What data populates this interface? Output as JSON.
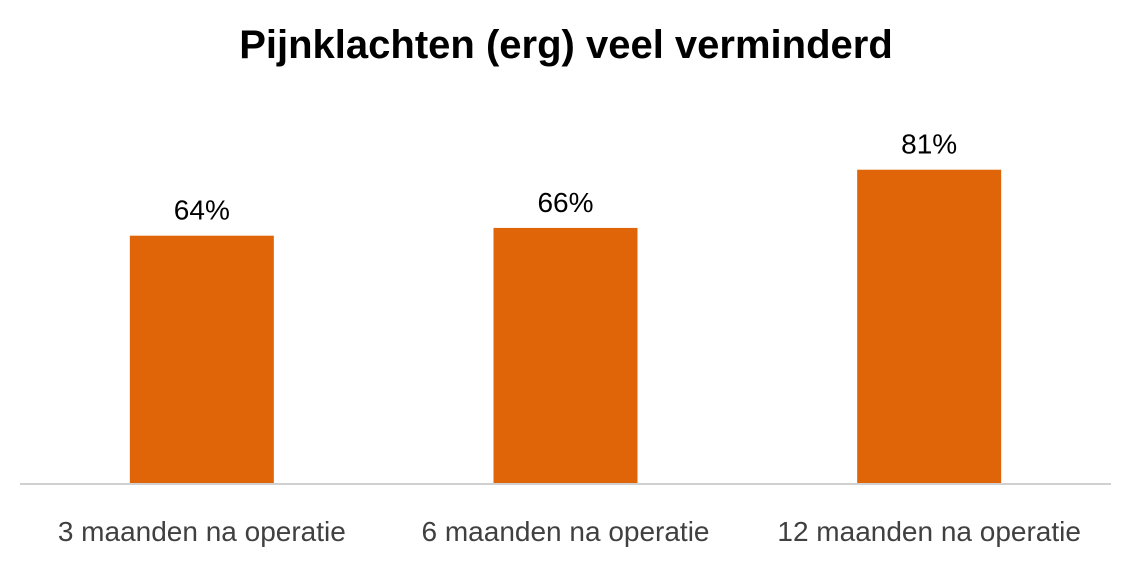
{
  "chart_data": {
    "type": "bar",
    "title": "Pijnklachten (erg) veel verminderd",
    "categories": [
      "3 maanden na operatie",
      "6 maanden na operatie",
      "12 maanden na operatie"
    ],
    "values": [
      64,
      66,
      81
    ],
    "value_labels": [
      "64%",
      "66%",
      "81%"
    ],
    "ylim": [
      0,
      100
    ],
    "grid": false,
    "legend": "none",
    "bar_color": "#E06508",
    "axis_color": "#D0D0D0"
  }
}
